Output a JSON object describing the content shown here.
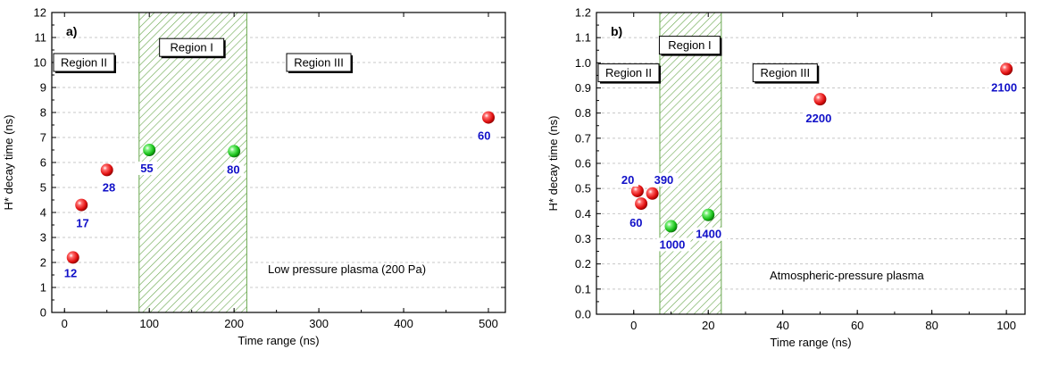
{
  "chart_data": [
    {
      "type": "scatter",
      "panel_label": "a)",
      "xlabel": "Time range (ns)",
      "ylabel": "H* decay time (ns)",
      "xlim": [
        -15,
        520
      ],
      "ylim": [
        0,
        12
      ],
      "xticks": [
        0,
        100,
        200,
        300,
        400,
        500
      ],
      "yticks": [
        0,
        1,
        2,
        3,
        4,
        5,
        6,
        7,
        8,
        9,
        10,
        11,
        12
      ],
      "grid": "horizontal dashed",
      "shaded_band": {
        "x_start": 88,
        "x_end": 215,
        "pattern": "diagonal hatch",
        "color": "#6aa84f"
      },
      "regions": [
        {
          "label": "Region II",
          "x": -15,
          "y": 10.0
        },
        {
          "label": "Region I",
          "x": 150,
          "y": 10.6
        },
        {
          "label": "Region III",
          "x": 262,
          "y": 10.0
        }
      ],
      "annotation": "Low pressure plasma (200 Pa)",
      "points": [
        {
          "x": 10,
          "y": 2.2,
          "label": "12",
          "color": "#e01010"
        },
        {
          "x": 20,
          "y": 4.3,
          "label": "17",
          "color": "#e01010"
        },
        {
          "x": 50,
          "y": 5.7,
          "label": "28",
          "color": "#e01010"
        },
        {
          "x": 100,
          "y": 6.5,
          "label": "55",
          "color": "#18c018"
        },
        {
          "x": 200,
          "y": 6.45,
          "label": "80",
          "color": "#18c018"
        },
        {
          "x": 500,
          "y": 7.8,
          "label": "60",
          "color": "#e01010"
        }
      ]
    },
    {
      "type": "scatter",
      "panel_label": "b)",
      "xlabel": "Time range (ns)",
      "ylabel": "H* decay time (ns)",
      "xlim": [
        -10,
        105
      ],
      "ylim": [
        0,
        1.2
      ],
      "xticks": [
        0,
        20,
        40,
        60,
        80,
        100
      ],
      "yticks": [
        0.0,
        0.1,
        0.2,
        0.3,
        0.4,
        0.5,
        0.6,
        0.7,
        0.8,
        0.9,
        1.0,
        1.1,
        1.2
      ],
      "ytick_labels": [
        "0.0",
        "0.1",
        "0.2",
        "0.3",
        "0.4",
        "0.5",
        "0.6",
        "0.7",
        "0.8",
        "0.9",
        "1.0",
        "1.1",
        "1.2"
      ],
      "grid": "horizontal dashed",
      "shaded_band": {
        "x_start": 7,
        "x_end": 23.5,
        "pattern": "diagonal hatch",
        "color": "#6aa84f"
      },
      "regions": [
        {
          "label": "Region II",
          "x": -10,
          "y": 0.96
        },
        {
          "label": "Region I",
          "x": 15.5,
          "y": 1.07
        },
        {
          "label": "Region III",
          "x": 32,
          "y": 0.96
        }
      ],
      "annotation": "Atmospheric-pressure plasma",
      "points": [
        {
          "x": 1,
          "y": 0.49,
          "label": "20",
          "color": "#e01010"
        },
        {
          "x": 2,
          "y": 0.44,
          "label": "60",
          "color": "#e01010"
        },
        {
          "x": 5,
          "y": 0.48,
          "label": "390",
          "color": "#e01010"
        },
        {
          "x": 10,
          "y": 0.35,
          "label": "1000",
          "color": "#18c018"
        },
        {
          "x": 20,
          "y": 0.395,
          "label": "1400",
          "color": "#18c018"
        },
        {
          "x": 50,
          "y": 0.855,
          "label": "2200",
          "color": "#e01010"
        },
        {
          "x": 100,
          "y": 0.975,
          "label": "2100",
          "color": "#e01010"
        }
      ]
    }
  ]
}
